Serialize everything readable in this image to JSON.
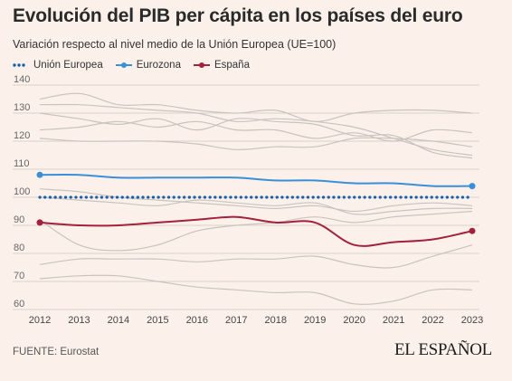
{
  "header": {
    "title": "Evolución del PIB per cápita en los países del euro",
    "subtitle": "Variación respecto al nivel medio de la Unión Europea (UE=100)"
  },
  "footer": {
    "source": "FUENTE: Eurostat",
    "brand": "EL ESPAÑOL"
  },
  "colors": {
    "background": "#fbf1ea",
    "union_europea": "#1b5fa8",
    "eurozona": "#3b8fd4",
    "espana": "#a3213a",
    "other_countries": "#c9c3bd",
    "grid": "#d7d1cb",
    "axis_text": "#666666"
  },
  "chart_data": {
    "type": "line",
    "title": "Evolución del PIB per cápita en los países del euro",
    "x": [
      2012,
      2013,
      2014,
      2015,
      2016,
      2017,
      2018,
      2019,
      2020,
      2021,
      2022,
      2023
    ],
    "ylim": [
      60,
      140
    ],
    "yticks": [
      60,
      70,
      80,
      90,
      100,
      110,
      120,
      130,
      140
    ],
    "grid": true,
    "legend_position": "top-left",
    "series": [
      {
        "name": "Unión Europea",
        "style": "dotted",
        "values": [
          100,
          100,
          100,
          100,
          100,
          100,
          100,
          100,
          100,
          100,
          100,
          100
        ]
      },
      {
        "name": "Eurozona",
        "style": "solid-markers",
        "values": [
          108,
          108,
          107,
          107,
          107,
          107,
          106,
          106,
          105,
          105,
          104,
          104
        ]
      },
      {
        "name": "España",
        "style": "solid-markers",
        "values": [
          91,
          90,
          90,
          91,
          92,
          93,
          91,
          91,
          83,
          84,
          85,
          88
        ]
      }
    ],
    "background_series": [
      {
        "values": [
          135,
          137,
          133,
          133,
          131,
          130,
          131,
          127,
          130,
          131,
          131,
          130
        ]
      },
      {
        "values": [
          133,
          133,
          132,
          131,
          130,
          127,
          128,
          127,
          125,
          121,
          117,
          115
        ]
      },
      {
        "values": [
          130,
          128,
          126,
          128,
          124,
          128,
          127,
          126,
          122,
          122,
          116,
          114
        ]
      },
      {
        "values": [
          124,
          125,
          127,
          125,
          127,
          124,
          124,
          121,
          123,
          120,
          124,
          123
        ]
      },
      {
        "values": [
          121,
          120,
          120,
          120,
          119,
          117,
          118,
          118,
          121,
          121,
          120,
          118
        ]
      },
      {
        "values": [
          103,
          102,
          100,
          99,
          98,
          97,
          96,
          97,
          95,
          97,
          98,
          97
        ]
      },
      {
        "values": [
          100,
          99,
          98,
          97,
          99,
          98,
          97,
          98,
          94,
          95,
          96,
          96
        ]
      },
      {
        "values": [
          92,
          83,
          81,
          83,
          88,
          90,
          91,
          93,
          91,
          93,
          94,
          95
        ]
      },
      {
        "values": [
          76,
          78,
          78,
          78,
          77,
          78,
          78,
          79,
          76,
          75,
          79,
          83
        ]
      },
      {
        "values": [
          71,
          72,
          72,
          70,
          68,
          67,
          66,
          66,
          62,
          63,
          67,
          67
        ]
      }
    ]
  }
}
